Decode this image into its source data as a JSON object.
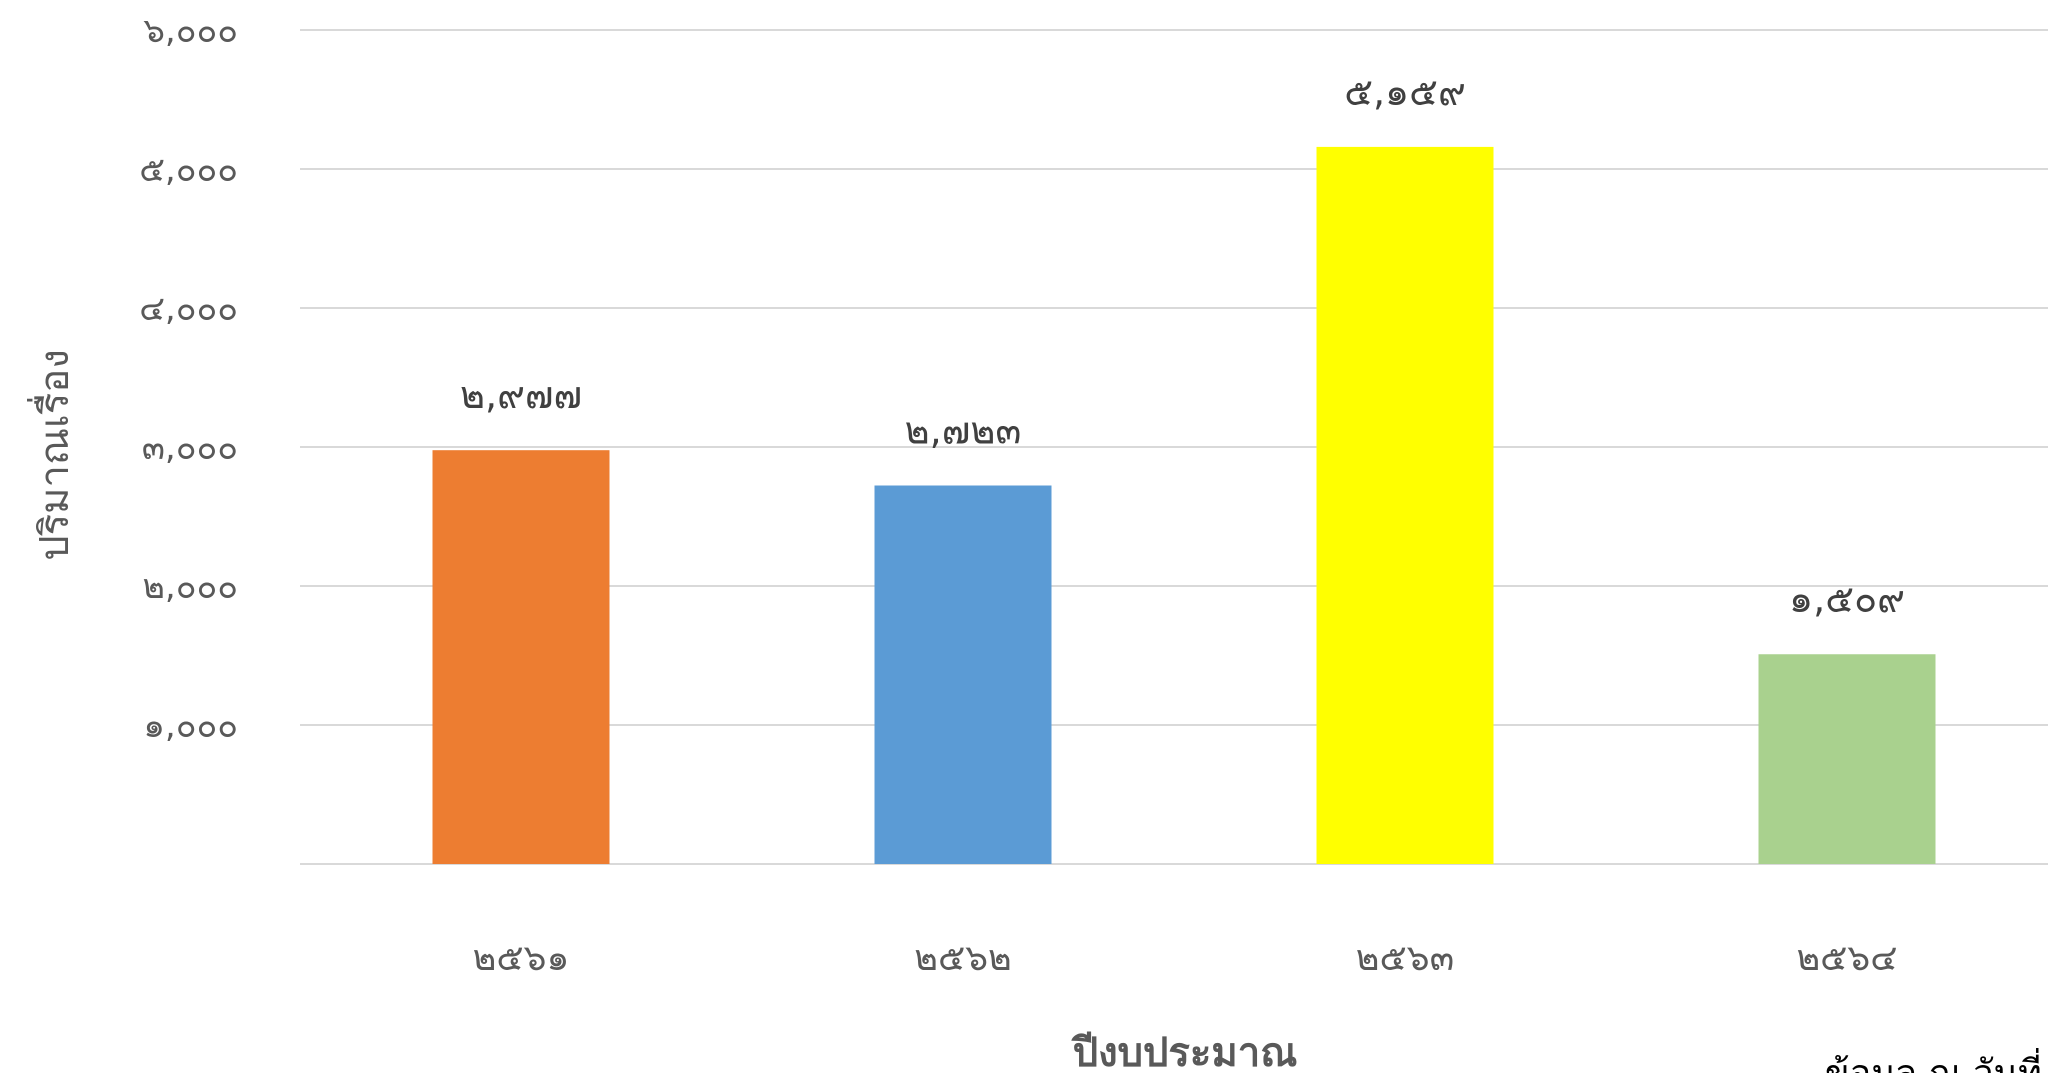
{
  "chart_data": {
    "type": "bar",
    "categories": [
      "๒๕๖๑",
      "๒๕๖๒",
      "๒๕๖๓",
      "๒๕๖๔"
    ],
    "values": [
      2977,
      2723,
      5159,
      1509
    ],
    "data_labels": [
      "๒,๙๗๗",
      "๒,๗๒๓",
      "๕,๑๕๙",
      "๑,๕๐๙"
    ],
    "bar_colors": [
      "#ED7D31",
      "#5B9BD5",
      "#FFFF00",
      "#A9D18E"
    ],
    "xlabel": "ปีงบประมาณ",
    "ylabel": "ปริมาณเรื่อง",
    "ylim": [
      0,
      6000
    ],
    "yticks": [
      1000,
      2000,
      3000,
      4000,
      5000,
      6000
    ],
    "ytick_labels": [
      "๑,๐๐๐",
      "๒,๐๐๐",
      "๓,๐๐๐",
      "๔,๐๐๐",
      "๕,๐๐๐",
      "๖,๐๐๐"
    ],
    "grid": true,
    "gridline_color": "#D9D9D9",
    "footnote": "ข้อมูล ณ วันที่"
  }
}
